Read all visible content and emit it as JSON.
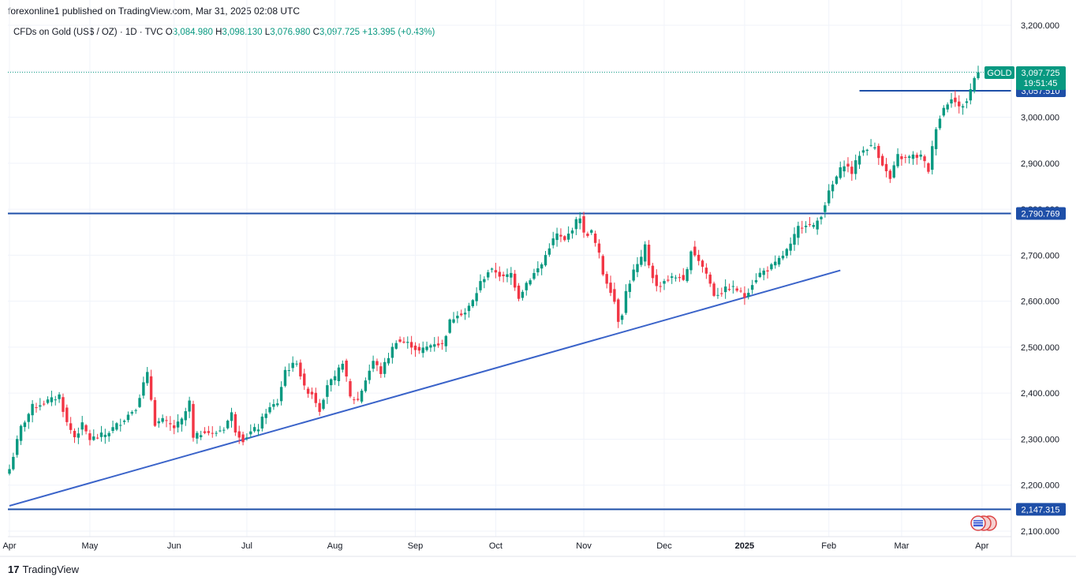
{
  "header": {
    "publisher_line": "forexonline1 published on TradingView.com, Mar 31, 2025 02:08 UTC"
  },
  "symbol": {
    "name": "CFDs on Gold (US$ / OZ) · 1D · TVC",
    "o_label": "O",
    "o_value": "3,084.980",
    "h_label": "H",
    "h_value": "3,098.130",
    "l_label": "L",
    "l_value": "3,076.980",
    "c_label": "C",
    "c_value": "3,097.725",
    "change": "+13.395 (+0.43%)"
  },
  "price_tag": {
    "ticker": "GOLD",
    "price": "3,097.725",
    "countdown": "19:51:45"
  },
  "level_labels": {
    "resistance_high": "3,057.510",
    "resistance_mid": "2,790.769",
    "support_low": "2,147.315"
  },
  "footer": {
    "brand": "TradingView",
    "logo_text": "17"
  },
  "colors": {
    "up": "#089981",
    "down": "#f23645",
    "line": "#2962ff",
    "hline": "#1e4fa8",
    "grid": "#f0f3fa",
    "axis_text": "#131722"
  },
  "chart_data": {
    "type": "candlestick",
    "title": "CFDs on Gold (US$ / OZ) · 1D · TVC",
    "ylim": [
      2090,
      3220
    ],
    "y_ticks": [
      2100,
      2200,
      2300,
      2400,
      2500,
      2600,
      2700,
      2800,
      2900,
      3000,
      3100,
      3200
    ],
    "y_tick_labels": [
      "2,100.000",
      "2,200.000",
      "2,300.000",
      "2,400.000",
      "2,500.000",
      "2,600.000",
      "2,700.000",
      "2,800.000",
      "2,900.000",
      "3,000.000",
      "3,100.000",
      "3,200.000"
    ],
    "x_ticks": [
      {
        "label": "Apr",
        "idx": 0
      },
      {
        "label": "May",
        "idx": 21
      },
      {
        "label": "Jun",
        "idx": 43
      },
      {
        "label": "Jul",
        "idx": 62
      },
      {
        "label": "Aug",
        "idx": 85
      },
      {
        "label": "Sep",
        "idx": 106
      },
      {
        "label": "Oct",
        "idx": 127
      },
      {
        "label": "Nov",
        "idx": 150
      },
      {
        "label": "Dec",
        "idx": 171
      },
      {
        "label": "2025",
        "idx": 192
      },
      {
        "label": "Feb",
        "idx": 214
      },
      {
        "label": "Mar",
        "idx": 233
      },
      {
        "label": "Apr",
        "idx": 254
      }
    ],
    "horizontal_levels": [
      3057.51,
      2790.769,
      2147.315
    ],
    "resistance_segment_start_idx": 222,
    "trendline": [
      {
        "idx": 0,
        "price": 2155
      },
      {
        "idx": 217,
        "price": 2667
      }
    ],
    "last_price": 3097.725,
    "anchors": [
      [
        0,
        2235
      ],
      [
        3,
        2325
      ],
      [
        6,
        2370
      ],
      [
        9,
        2380
      ],
      [
        11,
        2385
      ],
      [
        13,
        2395
      ],
      [
        15,
        2335
      ],
      [
        17,
        2305
      ],
      [
        19,
        2330
      ],
      [
        21,
        2300
      ],
      [
        23,
        2305
      ],
      [
        25,
        2310
      ],
      [
        28,
        2330
      ],
      [
        30,
        2345
      ],
      [
        33,
        2370
      ],
      [
        35,
        2420
      ],
      [
        36,
        2440
      ],
      [
        38,
        2335
      ],
      [
        40,
        2340
      ],
      [
        43,
        2325
      ],
      [
        45,
        2340
      ],
      [
        47,
        2380
      ],
      [
        48,
        2300
      ],
      [
        51,
        2320
      ],
      [
        53,
        2310
      ],
      [
        56,
        2325
      ],
      [
        58,
        2355
      ],
      [
        59,
        2320
      ],
      [
        61,
        2300
      ],
      [
        63,
        2315
      ],
      [
        65,
        2325
      ],
      [
        67,
        2360
      ],
      [
        70,
        2380
      ],
      [
        72,
        2450
      ],
      [
        74,
        2460
      ],
      [
        75,
        2470
      ],
      [
        77,
        2410
      ],
      [
        79,
        2400
      ],
      [
        81,
        2365
      ],
      [
        83,
        2420
      ],
      [
        85,
        2430
      ],
      [
        87,
        2470
      ],
      [
        89,
        2390
      ],
      [
        91,
        2385
      ],
      [
        93,
        2430
      ],
      [
        95,
        2470
      ],
      [
        97,
        2445
      ],
      [
        99,
        2480
      ],
      [
        101,
        2515
      ],
      [
        103,
        2510
      ],
      [
        105,
        2505
      ],
      [
        107,
        2490
      ],
      [
        109,
        2500
      ],
      [
        111,
        2510
      ],
      [
        113,
        2505
      ],
      [
        115,
        2555
      ],
      [
        117,
        2575
      ],
      [
        119,
        2575
      ],
      [
        121,
        2600
      ],
      [
        123,
        2640
      ],
      [
        125,
        2665
      ],
      [
        127,
        2665
      ],
      [
        129,
        2650
      ],
      [
        131,
        2660
      ],
      [
        133,
        2610
      ],
      [
        135,
        2640
      ],
      [
        137,
        2660
      ],
      [
        139,
        2680
      ],
      [
        141,
        2720
      ],
      [
        143,
        2745
      ],
      [
        145,
        2730
      ],
      [
        147,
        2760
      ],
      [
        149,
        2785
      ],
      [
        150,
        2745
      ],
      [
        152,
        2750
      ],
      [
        154,
        2700
      ],
      [
        155,
        2660
      ],
      [
        157,
        2625
      ],
      [
        158,
        2600
      ],
      [
        159,
        2560
      ],
      [
        160,
        2575
      ],
      [
        161,
        2620
      ],
      [
        163,
        2665
      ],
      [
        165,
        2690
      ],
      [
        166,
        2720
      ],
      [
        167,
        2680
      ],
      [
        169,
        2630
      ],
      [
        171,
        2645
      ],
      [
        173,
        2650
      ],
      [
        175,
        2655
      ],
      [
        176,
        2640
      ],
      [
        177,
        2665
      ],
      [
        178,
        2715
      ],
      [
        180,
        2690
      ],
      [
        182,
        2660
      ],
      [
        184,
        2615
      ],
      [
        186,
        2620
      ],
      [
        188,
        2630
      ],
      [
        190,
        2625
      ],
      [
        192,
        2610
      ],
      [
        194,
        2640
      ],
      [
        196,
        2660
      ],
      [
        198,
        2670
      ],
      [
        200,
        2680
      ],
      [
        202,
        2700
      ],
      [
        204,
        2720
      ],
      [
        206,
        2760
      ],
      [
        208,
        2770
      ],
      [
        210,
        2760
      ],
      [
        212,
        2790
      ],
      [
        214,
        2835
      ],
      [
        216,
        2870
      ],
      [
        218,
        2900
      ],
      [
        220,
        2880
      ],
      [
        222,
        2920
      ],
      [
        224,
        2935
      ],
      [
        226,
        2935
      ],
      [
        228,
        2900
      ],
      [
        229,
        2880
      ],
      [
        230,
        2865
      ],
      [
        232,
        2915
      ],
      [
        234,
        2910
      ],
      [
        236,
        2915
      ],
      [
        238,
        2915
      ],
      [
        240,
        2885
      ],
      [
        242,
        2980
      ],
      [
        244,
        3020
      ],
      [
        246,
        3045
      ],
      [
        248,
        3020
      ],
      [
        250,
        3035
      ],
      [
        252,
        3085
      ],
      [
        253,
        3097.725
      ]
    ]
  }
}
